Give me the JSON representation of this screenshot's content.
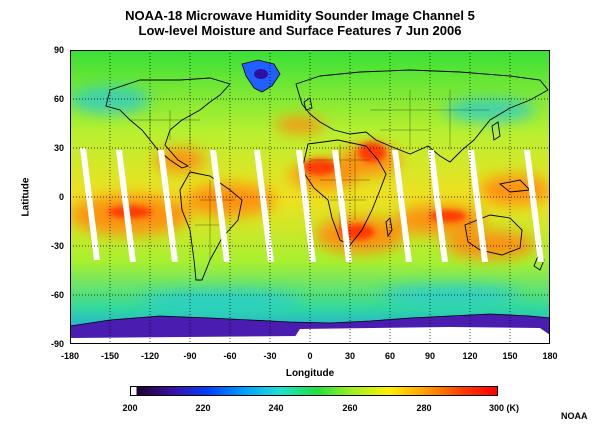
{
  "title_line1": "NOAA-18 Microwave Humidity Sounder Image Channel 5",
  "title_line2": "Low-level Moisture and Surface Features  7 Jun 2006",
  "axis": {
    "ylabel": "Latitude",
    "xlabel": "Longitude",
    "lat_ticks": [
      "90",
      "60",
      "30",
      "0",
      "-30",
      "-60",
      "-90"
    ],
    "lon_ticks": [
      "-180",
      "-150",
      "-120",
      "-90",
      "-60",
      "-30",
      "0",
      "30",
      "60",
      "90",
      "120",
      "150",
      "180"
    ]
  },
  "colorbar": {
    "ticks": [
      "200",
      "220",
      "240",
      "260",
      "280",
      "300 (K)"
    ],
    "colors": [
      "#ffffff",
      "#200030",
      "#3a10a0",
      "#0040ff",
      "#00a0ff",
      "#20e0d0",
      "#20e040",
      "#a0f020",
      "#fff000",
      "#ffa000",
      "#ff4000",
      "#ff0000"
    ]
  },
  "credit": "NOAA"
}
